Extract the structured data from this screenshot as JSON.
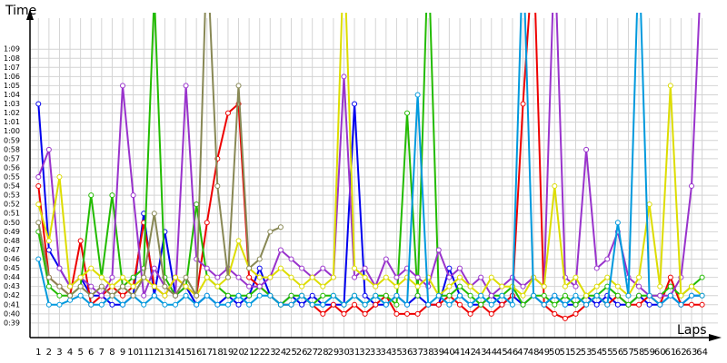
{
  "chart_data": {
    "type": "line",
    "y_label": "Time",
    "x_label": "Laps",
    "x": [
      1,
      2,
      3,
      4,
      5,
      6,
      7,
      8,
      9,
      10,
      11,
      12,
      13,
      14,
      15,
      16,
      17,
      18,
      19,
      20,
      21,
      22,
      23,
      24,
      25,
      26,
      27,
      28,
      29,
      30,
      31,
      32,
      33,
      34,
      35,
      36,
      37,
      38,
      39,
      40,
      41,
      42,
      43,
      44,
      45,
      46,
      47,
      48,
      49,
      50,
      51,
      52,
      53,
      54,
      55,
      56,
      57,
      58,
      59,
      60,
      61,
      62,
      63,
      64
    ],
    "xlim": [
      0.2,
      65.5
    ],
    "ylim": [
      37.4,
      72.4
    ],
    "yticks": [
      {
        "value": 39,
        "label": "0:39"
      },
      {
        "value": 40,
        "label": "0:40"
      },
      {
        "value": 41,
        "label": "0:41"
      },
      {
        "value": 42,
        "label": "0:42"
      },
      {
        "value": 43,
        "label": "0:43"
      },
      {
        "value": 44,
        "label": "0:44"
      },
      {
        "value": 45,
        "label": "0:45"
      },
      {
        "value": 46,
        "label": "0:46"
      },
      {
        "value": 47,
        "label": "0:47"
      },
      {
        "value": 48,
        "label": "0:48"
      },
      {
        "value": 49,
        "label": "0:49"
      },
      {
        "value": 50,
        "label": "0:50"
      },
      {
        "value": 51,
        "label": "0:51"
      },
      {
        "value": 52,
        "label": "0:52"
      },
      {
        "value": 53,
        "label": "0:53"
      },
      {
        "value": 54,
        "label": "0:54"
      },
      {
        "value": 55,
        "label": "0:55"
      },
      {
        "value": 56,
        "label": "0:56"
      },
      {
        "value": 57,
        "label": "0:57"
      },
      {
        "value": 58,
        "label": "0:58"
      },
      {
        "value": 59,
        "label": "0:59"
      },
      {
        "value": 60,
        "label": "1:00"
      },
      {
        "value": 61,
        "label": "1:01"
      },
      {
        "value": 62,
        "label": "1:02"
      },
      {
        "value": 63,
        "label": "1:03"
      },
      {
        "value": 64,
        "label": "1:04"
      },
      {
        "value": 65,
        "label": "1:05"
      },
      {
        "value": 66,
        "label": "1:06"
      },
      {
        "value": 67,
        "label": "1:07"
      },
      {
        "value": 68,
        "label": "1:08"
      },
      {
        "value": 69,
        "label": "1:09"
      }
    ],
    "grid": true,
    "series": [
      {
        "color": "#0000ee",
        "values": [
          63,
          47,
          45,
          43,
          44,
          42,
          42,
          41,
          41,
          42,
          51,
          42,
          49,
          42,
          43,
          41,
          42,
          41,
          42,
          41,
          42,
          45,
          42,
          41,
          42,
          41,
          42,
          41,
          41,
          41,
          63,
          42,
          41,
          41,
          42,
          41,
          42,
          41,
          41,
          45,
          42,
          41,
          41,
          42,
          41,
          42,
          41,
          42,
          41,
          42,
          41,
          41,
          42,
          41,
          42,
          41,
          41,
          42,
          41,
          41,
          42,
          41,
          42,
          42
        ]
      },
      {
        "color": "#ee0000",
        "values": [
          54,
          44,
          43,
          42,
          48,
          41,
          42,
          43,
          42,
          43,
          50,
          43,
          42,
          44,
          43,
          42,
          50,
          57,
          62,
          63,
          44,
          43,
          42,
          41,
          41,
          42,
          41,
          40,
          41,
          40,
          41,
          40,
          41,
          42,
          40,
          40,
          40,
          41,
          41,
          42,
          41,
          40,
          41,
          40,
          41,
          42,
          63,
          80,
          41,
          40,
          39.5,
          40,
          41,
          42,
          41,
          42,
          41,
          41,
          42,
          41,
          44,
          41,
          41,
          41
        ]
      },
      {
        "color": "#22bb00",
        "values": [
          49,
          43,
          42,
          42,
          43,
          53,
          44,
          53,
          43,
          44,
          45,
          75,
          44,
          42,
          43,
          52,
          44,
          43,
          42,
          42,
          42,
          43,
          42,
          41,
          42,
          42,
          41,
          42,
          42,
          41,
          42,
          41,
          42,
          42,
          41,
          62,
          42,
          80,
          42,
          42,
          43,
          42,
          41,
          42,
          42,
          43,
          41,
          42,
          42,
          41,
          42,
          41,
          42,
          42,
          43,
          42,
          41,
          42,
          42,
          42,
          43,
          42,
          43,
          44
        ]
      },
      {
        "color": "#9933cc",
        "values": [
          55,
          58,
          45,
          43,
          44,
          43,
          42,
          44,
          65,
          53,
          42,
          45,
          43,
          42,
          65,
          46,
          45,
          44,
          45,
          44,
          43,
          43,
          44,
          47,
          46,
          45,
          44,
          45,
          44,
          66,
          44,
          45,
          43,
          46,
          44,
          45,
          44,
          43,
          47,
          44,
          45,
          43,
          44,
          42,
          43,
          44,
          43,
          44,
          43,
          80,
          44,
          43,
          58,
          45,
          46,
          49,
          44,
          43,
          42,
          42,
          42,
          44,
          54,
          80
        ]
      },
      {
        "color": "#dddd00",
        "values": [
          52,
          48,
          55,
          43,
          44,
          45,
          44,
          43,
          44,
          43,
          44,
          43,
          42,
          44,
          43,
          42,
          44,
          43,
          44,
          48,
          45,
          44,
          44,
          45,
          44,
          43,
          44,
          43,
          44,
          80,
          45,
          44,
          43,
          44,
          43,
          44,
          43,
          44,
          42,
          43,
          44,
          43,
          42,
          44,
          43,
          43,
          42,
          44,
          43,
          54,
          43,
          44,
          42,
          43,
          44,
          43,
          42,
          44,
          52,
          43,
          65,
          42,
          43,
          42
        ]
      },
      {
        "color": "#0099dd",
        "values": [
          46,
          41,
          41,
          41.5,
          42,
          41,
          41,
          42,
          41,
          42,
          41,
          42,
          41,
          41,
          42,
          41,
          42,
          41,
          41,
          42,
          41,
          42,
          42,
          41,
          41,
          42,
          41,
          41,
          42,
          41,
          42,
          41,
          42,
          41,
          42,
          41,
          64,
          41,
          42,
          41,
          42,
          41,
          42,
          41,
          42,
          41,
          80,
          42,
          41,
          42,
          41,
          42,
          41,
          42,
          41,
          50,
          42,
          80,
          42,
          41,
          42,
          41,
          42,
          42
        ]
      },
      {
        "color": "#888855",
        "values": [
          50,
          44,
          43,
          42,
          43,
          42,
          43,
          42,
          43,
          42,
          44,
          51,
          43,
          42,
          44,
          42,
          80,
          54,
          44,
          65,
          45,
          46,
          49,
          49.5,
          null,
          null,
          null,
          null,
          null,
          null,
          null,
          null,
          null,
          null,
          null,
          null,
          null,
          null,
          null,
          null,
          null,
          null,
          null,
          null,
          null,
          null,
          null,
          null,
          null,
          null,
          null,
          null,
          null,
          null,
          null,
          null,
          null,
          null,
          null,
          null,
          null,
          null,
          null,
          null
        ]
      }
    ]
  }
}
